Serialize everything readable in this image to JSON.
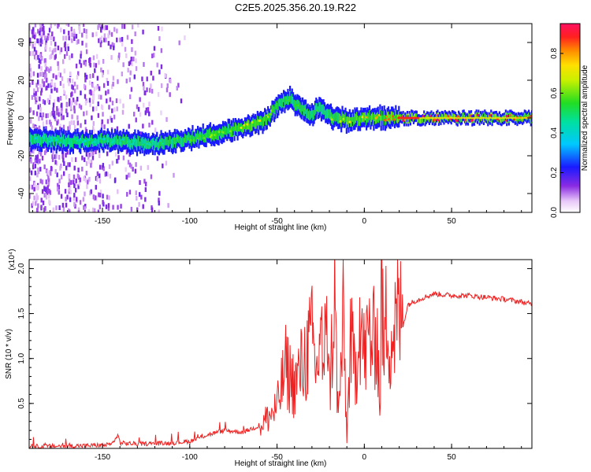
{
  "title": "C2E5.2025.356.20.19.R22",
  "colors": {
    "snr_line": "#ee2222",
    "axis": "#000000",
    "spectrum_background": "#ffffff"
  },
  "chart_data": [
    {
      "type": "heatmap",
      "name": "spectrogram",
      "xlabel": "Height of straight line (km)",
      "ylabel": "Frequency (Hz)",
      "xlim": [
        -192,
        96
      ],
      "ylim": [
        -50,
        50
      ],
      "xticks": [
        -150,
        -100,
        -50,
        0,
        50
      ],
      "yticks": [
        -40,
        -20,
        0,
        20,
        40
      ],
      "colorbar": {
        "label": "Normalized spectral amplitude",
        "range": [
          0,
          0.95
        ],
        "ticks": [
          0.0,
          0.2,
          0.4,
          0.6,
          0.8
        ]
      },
      "ridge": {
        "x": [
          -192,
          -170,
          -150,
          -130,
          -120,
          -100,
          -80,
          -65,
          -55,
          -48,
          -42,
          -36,
          -30,
          -25,
          -22,
          -18,
          -10,
          0,
          10,
          25,
          40,
          60,
          80,
          96
        ],
        "y": [
          -11,
          -12,
          -12,
          -13,
          -14,
          -11,
          -7,
          -4,
          0,
          9,
          10,
          5,
          2,
          6,
          3,
          0,
          -1,
          0,
          0,
          0,
          0,
          0,
          0,
          0
        ],
        "amplitude": [
          0.35,
          0.4,
          0.4,
          0.45,
          0.45,
          0.55,
          0.6,
          0.7,
          0.6,
          0.55,
          0.55,
          0.5,
          0.5,
          0.5,
          0.5,
          0.6,
          0.7,
          0.75,
          0.8,
          0.9,
          0.88,
          0.9,
          0.88,
          0.85
        ]
      }
    },
    {
      "type": "line",
      "name": "snr",
      "xlabel": "Height of straight line (km)",
      "ylabel": "SNR (10 * v/v)",
      "scale_label": "(x10⁴)",
      "xlim": [
        -192,
        96
      ],
      "ylim": [
        0,
        2.1
      ],
      "xticks": [
        -150,
        -100,
        -50,
        0,
        50
      ],
      "yticks": [
        0.5,
        1.0,
        1.5,
        2.0
      ],
      "ytick_labels": [
        "0.5",
        "1.0",
        "1.5",
        "2.0"
      ],
      "series": [
        {
          "name": "SNR",
          "x": [
            -192,
            -160,
            -145,
            -141,
            -140,
            -130,
            -110,
            -100,
            -90,
            -80,
            -70,
            -60,
            -55,
            -50,
            -45,
            -40,
            -35,
            -30,
            -27,
            -25,
            -23,
            -22,
            -20,
            -17,
            -15,
            -12,
            -10,
            -8,
            -5,
            -3,
            0,
            3,
            5,
            7,
            9,
            10,
            11,
            13,
            15,
            17,
            20,
            22,
            25,
            30,
            40,
            50,
            60,
            70,
            80,
            90,
            96
          ],
          "y": [
            0.02,
            0.03,
            0.04,
            0.15,
            0.06,
            0.05,
            0.06,
            0.08,
            0.15,
            0.2,
            0.18,
            0.25,
            0.35,
            0.45,
            0.9,
            0.7,
            0.95,
            1.2,
            0.8,
            1.5,
            0.5,
            2.1,
            0.6,
            1.7,
            0.3,
            1.4,
            0.1,
            1.2,
            0.8,
            1.6,
            1.0,
            1.3,
            1.1,
            1.5,
            0.4,
            2.1,
            0.9,
            1.6,
            1.2,
            1.3,
            1.5,
            1.35,
            1.6,
            1.65,
            1.72,
            1.7,
            1.7,
            1.68,
            1.66,
            1.63,
            1.6
          ]
        }
      ]
    }
  ]
}
